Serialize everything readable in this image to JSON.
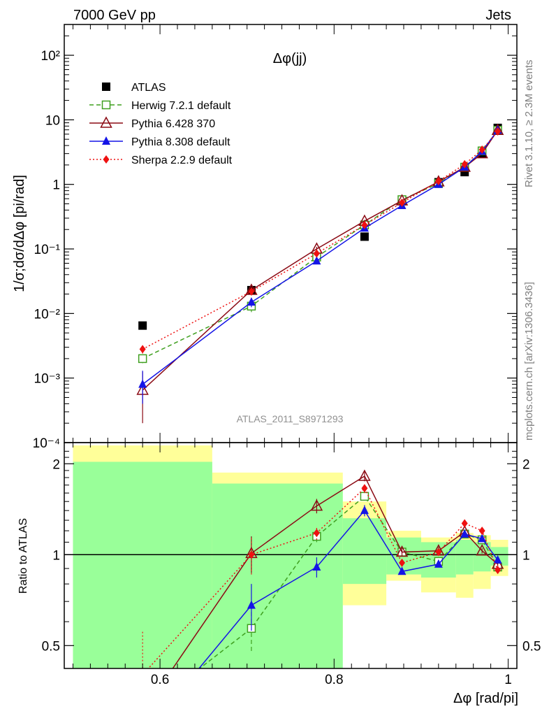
{
  "header": {
    "left": "7000 GeV pp",
    "right": "Jets"
  },
  "side_labels": {
    "rivet": "Rivet 3.1.10, ≥ 2.3M events",
    "mcplots": "mcplots.cern.ch [arXiv:1306.3436]"
  },
  "chart_data": [
    {
      "type": "scatter",
      "panel": "main",
      "title": "Δφ(jj)",
      "analysis_tag": "ATLAS_2011_S8971293",
      "ylabel": "1/σ;dσ/dΔφ [pi/rad]",
      "xlabel": "",
      "xlim": [
        0.49,
        1.01
      ],
      "ylim": [
        0.0001,
        300
      ],
      "yscale": "log",
      "y_ticks": [
        {
          "value": 100,
          "label": "10²"
        },
        {
          "value": 10,
          "label": "10"
        },
        {
          "value": 1,
          "label": "1"
        },
        {
          "value": 0.1,
          "label": "10⁻¹"
        },
        {
          "value": 0.01,
          "label": "10⁻²"
        },
        {
          "value": 0.001,
          "label": "10⁻³"
        },
        {
          "value": 0.0001,
          "label": "10⁻⁴"
        }
      ],
      "legend_position": "top-left",
      "x": [
        0.58,
        0.705,
        0.78,
        0.835,
        0.878,
        0.92,
        0.95,
        0.97,
        0.988
      ],
      "series": [
        {
          "name": "ATLAS",
          "color": "#000000",
          "marker": "square-filled",
          "line": "none",
          "y": [
            0.0065,
            0.023,
            0.075,
            0.155,
            0.55,
            1.08,
            1.55,
            3.0,
            7.5
          ]
        },
        {
          "name": "Herwig 7.2.1 default",
          "color": "#3f9f1f",
          "marker": "square-open",
          "line": "dashed",
          "y": [
            0.002,
            0.013,
            0.075,
            0.235,
            0.58,
            1.03,
            1.85,
            3.3,
            6.9
          ],
          "err_low": [
            0.0003,
            0.0025,
            0.006,
            0.01,
            0.02,
            0.03,
            0.05,
            0.08,
            0.15
          ],
          "err_high": [
            0.0003,
            0.0025,
            0.006,
            0.01,
            0.02,
            0.03,
            0.05,
            0.08,
            0.15
          ]
        },
        {
          "name": "Pythia 6.428 370",
          "color": "#8b0a14",
          "marker": "triangle-open",
          "line": "solid",
          "y": [
            0.00065,
            0.023,
            0.1,
            0.27,
            0.56,
            1.1,
            1.85,
            3.0,
            6.9
          ],
          "err_low": [
            0.00045,
            0.003,
            0.008,
            0.012,
            0.02,
            0.03,
            0.05,
            0.08,
            0.15
          ],
          "err_high": [
            0.0006,
            0.003,
            0.008,
            0.012,
            0.02,
            0.03,
            0.05,
            0.08,
            0.15
          ]
        },
        {
          "name": "Pythia 8.308 default",
          "color": "#1414e6",
          "marker": "triangle-filled",
          "line": "solid",
          "y": [
            0.0008,
            0.015,
            0.065,
            0.21,
            0.47,
            1.0,
            1.85,
            3.25,
            6.9
          ],
          "err_low": [
            0.0004,
            0.0025,
            0.006,
            0.01,
            0.02,
            0.03,
            0.05,
            0.08,
            0.15
          ],
          "err_high": [
            0.0005,
            0.0025,
            0.006,
            0.01,
            0.02,
            0.03,
            0.05,
            0.08,
            0.15
          ]
        },
        {
          "name": "Sherpa 2.2.9 default",
          "color": "#ee1111",
          "marker": "diamond-filled",
          "line": "dotted",
          "y": [
            0.0028,
            0.022,
            0.085,
            0.235,
            0.52,
            1.12,
            2.05,
            3.45,
            6.6
          ],
          "err_low": [
            0.0004,
            0.003,
            0.006,
            0.01,
            0.02,
            0.03,
            0.05,
            0.08,
            0.15
          ],
          "err_high": [
            0.0004,
            0.003,
            0.006,
            0.01,
            0.02,
            0.03,
            0.05,
            0.08,
            0.15
          ]
        }
      ]
    },
    {
      "type": "line",
      "panel": "ratio",
      "ylabel": "Ratio to ATLAS",
      "xlabel": "Δφ [rad/pi]",
      "xlim": [
        0.49,
        1.01
      ],
      "ylim": [
        0.42,
        2.35
      ],
      "yscale": "log",
      "x_ticks": [
        {
          "value": 0.6,
          "label": "0.6"
        },
        {
          "value": 0.8,
          "label": "0.8"
        },
        {
          "value": 1.0,
          "label": "1"
        }
      ],
      "y_ticks": [
        {
          "value": 0.5,
          "label": "0.5"
        },
        {
          "value": 1,
          "label": "1"
        },
        {
          "value": 2,
          "label": "2"
        }
      ],
      "bands": {
        "edges": [
          0.5,
          0.66,
          0.75,
          0.81,
          0.86,
          0.9,
          0.94,
          0.96,
          0.98,
          1.0
        ],
        "yellow_low": [
          0.3,
          0.3,
          0.53,
          0.68,
          0.82,
          0.75,
          0.72,
          0.77,
          0.85
        ],
        "yellow_high": [
          2.3,
          1.87,
          1.87,
          1.5,
          1.2,
          1.14,
          1.18,
          1.16,
          1.12
        ],
        "green_low": [
          0.3,
          0.3,
          0.3,
          0.8,
          0.86,
          0.84,
          0.86,
          0.88,
          0.92
        ],
        "green_high": [
          2.03,
          1.72,
          1.72,
          1.32,
          1.14,
          1.1,
          1.12,
          1.1,
          1.06
        ]
      },
      "x": [
        0.58,
        0.705,
        0.78,
        0.835,
        0.878,
        0.92,
        0.95,
        0.97,
        0.988
      ],
      "series": [
        {
          "name": "Herwig 7.2.1 default",
          "color": "#3f9f1f",
          "marker": "square-open",
          "line": "dashed",
          "y": [
            0.3,
            0.57,
            1.15,
            1.56,
            1.02,
            0.95,
            1.17,
            1.12,
            0.91
          ],
          "err_low": [
            0,
            0.09,
            0.05,
            0.05,
            0.02,
            0.02,
            0.02,
            0.02,
            0.02
          ],
          "err_high": [
            0,
            0.09,
            0.05,
            0.05,
            0.02,
            0.02,
            0.02,
            0.02,
            0.02
          ]
        },
        {
          "name": "Pythia 6.428 370",
          "color": "#8b0a14",
          "marker": "triangle-open",
          "line": "solid",
          "y": [
            0.3,
            1.01,
            1.45,
            1.82,
            1.02,
            1.03,
            1.19,
            1.03,
            0.93
          ],
          "err_low": [
            0,
            0.14,
            0.08,
            0.07,
            0.03,
            0.03,
            0.02,
            0.02,
            0.02
          ],
          "err_high": [
            0,
            0.14,
            0.08,
            0.07,
            0.03,
            0.03,
            0.02,
            0.02,
            0.02
          ]
        },
        {
          "name": "Pythia 8.308 default",
          "color": "#1414e6",
          "marker": "triangle-filled",
          "line": "solid",
          "y": [
            0.25,
            0.68,
            0.91,
            1.4,
            0.88,
            0.93,
            1.17,
            1.13,
            0.96
          ],
          "err_low": [
            0,
            0.12,
            0.07,
            0.06,
            0.02,
            0.02,
            0.02,
            0.02,
            0.02
          ],
          "err_high": [
            0,
            0.12,
            0.07,
            0.06,
            0.02,
            0.02,
            0.02,
            0.02,
            0.02
          ]
        },
        {
          "name": "Sherpa 2.2.9 default",
          "color": "#ee1111",
          "marker": "diamond-filled",
          "line": "dotted",
          "y": [
            0.4,
            1.0,
            1.18,
            1.66,
            0.94,
            1.02,
            1.27,
            1.2,
            0.89
          ],
          "err_low": [
            0.06,
            0.14,
            0.06,
            0.06,
            0.02,
            0.02,
            0.02,
            0.02,
            0.02
          ],
          "err_high": [
            0.16,
            0.14,
            0.06,
            0.06,
            0.02,
            0.02,
            0.02,
            0.02,
            0.02
          ]
        }
      ]
    }
  ]
}
